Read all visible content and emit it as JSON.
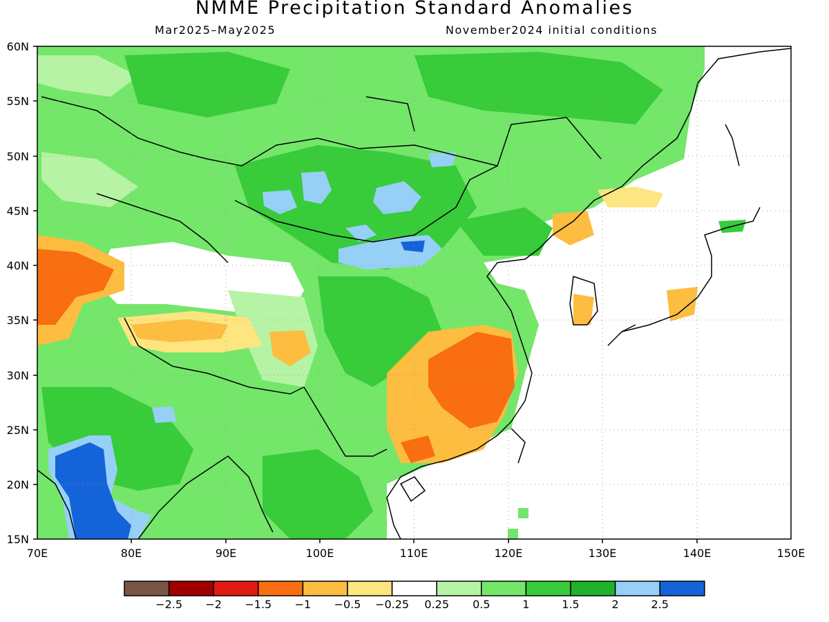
{
  "title": "NMME Precipitation Standard Anomalies",
  "subtitle_left": "Mar2025–May2025",
  "subtitle_right": "November2024 initial conditions",
  "map": {
    "lon_range": [
      70,
      150
    ],
    "lat_range": [
      15,
      60
    ],
    "lon_ticks": [
      "70E",
      "80E",
      "90E",
      "100E",
      "110E",
      "120E",
      "130E",
      "140E",
      "150E"
    ],
    "lat_ticks": [
      "60N",
      "55N",
      "50N",
      "45N",
      "40N",
      "35N",
      "30N",
      "25N",
      "20N",
      "15N"
    ],
    "grid": "dotted"
  },
  "legend": {
    "colors": [
      "#7b5546",
      "#a00000",
      "#e01a10",
      "#f86e10",
      "#fcbd40",
      "#fde580",
      "#ffffff",
      "#b6f3a5",
      "#74e66a",
      "#38cb3a",
      "#20b22b",
      "#96d0f6",
      "#1463d8"
    ],
    "labels": [
      "−2.5",
      "−2",
      "−1.5",
      "−1",
      "−0.5",
      "−0.25",
      "0.25",
      "0.5",
      "1",
      "1.5",
      "2",
      "2.5"
    ]
  },
  "anomaly_regions": [
    {
      "level": "1",
      "color": "#74e66a"
    },
    {
      "level": "1.5",
      "color": "#38cb3a"
    },
    {
      "level": "2.5",
      "color": "#96d0f6"
    },
    {
      "level": "-1",
      "color": "#fcbd40"
    },
    {
      "level": "-1.5",
      "color": "#f86e10"
    }
  ]
}
